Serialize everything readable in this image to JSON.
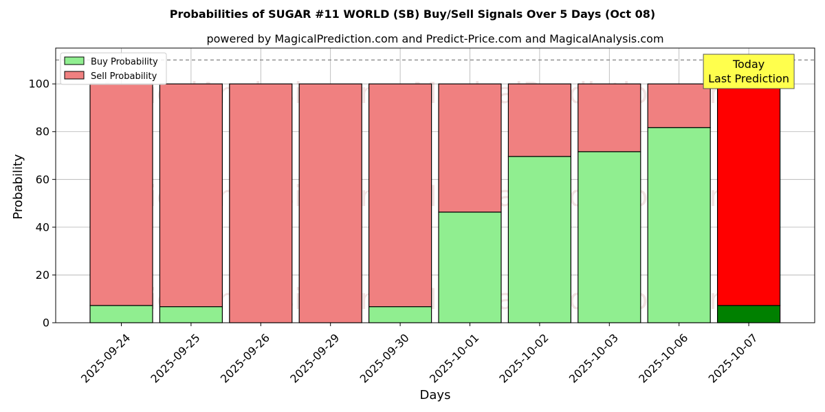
{
  "chart_data": {
    "type": "bar",
    "stacked": true,
    "title": "Probabilities of SUGAR #11 WORLD (SB) Buy/Sell Signals Over 5 Days (Oct 08)",
    "subtitle": "powered by MagicalPrediction.com and Predict-Price.com and MagicalAnalysis.com",
    "xlabel": "Days",
    "ylabel": "Probability",
    "ylim": [
      0,
      115
    ],
    "yticks": [
      0,
      20,
      40,
      60,
      80,
      100
    ],
    "grid": true,
    "legend_position": "top-left",
    "reference_line": 110,
    "categories": [
      "2025-09-24",
      "2025-09-25",
      "2025-09-26",
      "2025-09-29",
      "2025-09-30",
      "2025-10-01",
      "2025-10-02",
      "2025-10-03",
      "2025-10-06",
      "2025-10-07"
    ],
    "series": [
      {
        "name": "Buy Probability",
        "color": "#90ee90",
        "values": [
          7.2,
          6.7,
          0,
          0,
          6.7,
          46.3,
          69.6,
          71.6,
          81.7,
          7.2
        ]
      },
      {
        "name": "Sell Probability",
        "color": "#f08080",
        "values": [
          92.8,
          93.3,
          100,
          100,
          93.3,
          53.7,
          30.4,
          28.4,
          18.3,
          92.8
        ]
      }
    ],
    "highlight": {
      "index": 9,
      "buy_color": "#008000",
      "sell_color": "#ff0000"
    },
    "annotation": {
      "lines": [
        "Today",
        "Last Prediction"
      ],
      "background": "#ffff4d"
    },
    "watermarks": [
      "MagicalAnalysis.com",
      "MagicalPrediction.com"
    ]
  }
}
